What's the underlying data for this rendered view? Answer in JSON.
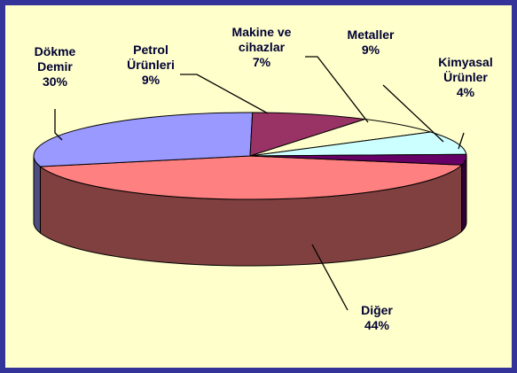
{
  "chart_data": {
    "type": "pie3d",
    "categories": [
      "Diğer",
      "Dökme Demir",
      "Petrol Ürünleri",
      "Makine ve cihazlar",
      "Metaller",
      "Kimyasal Ürünler"
    ],
    "values": [
      44,
      30,
      9,
      7,
      9,
      4
    ],
    "value_labels": [
      "44%",
      "30%",
      "9%",
      "7%",
      "9%",
      "4%"
    ],
    "colors": [
      "#ff8080",
      "#9999ff",
      "#993366",
      "#ffffcc",
      "#ccffff",
      "#660066"
    ]
  }
}
